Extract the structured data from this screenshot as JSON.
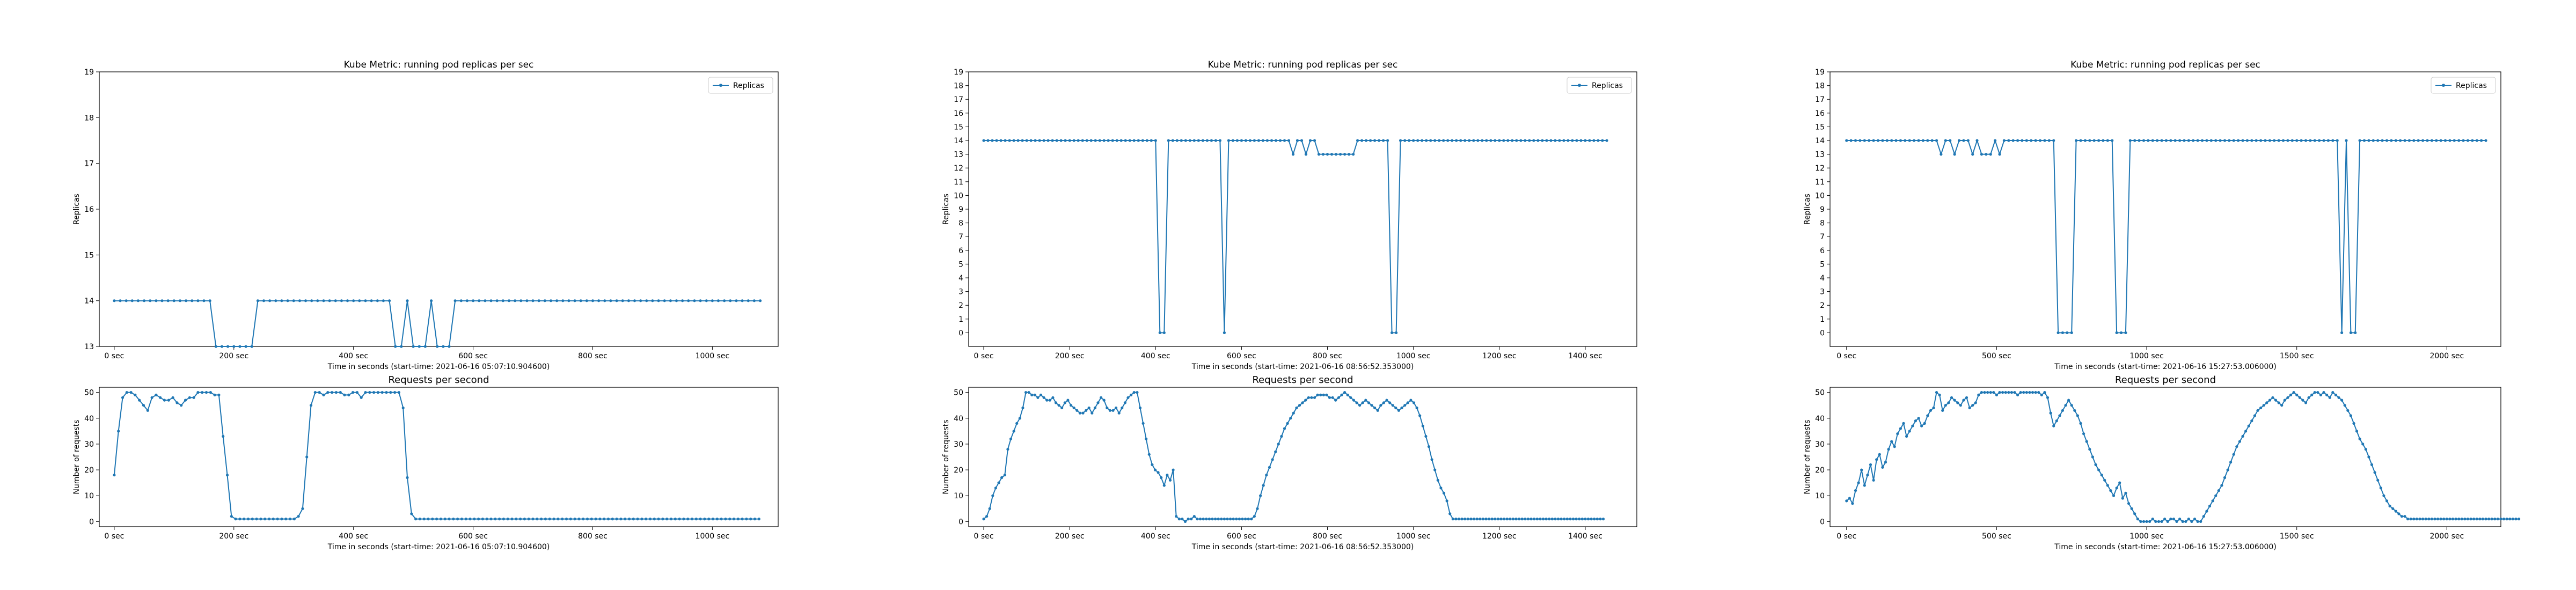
{
  "chart_data": [
    {
      "type": "line",
      "title": "Kube Metric: running pod replicas per sec",
      "xlabel": "Time in seconds (start-time: 2021-06-16 05:07:10.904600)",
      "ylabel": "Replicas",
      "xlim": [
        -25,
        1110
      ],
      "ylim": [
        13,
        19
      ],
      "xticks": [
        0,
        200,
        400,
        600,
        800,
        1000
      ],
      "xtick_labels": [
        "0 sec",
        "200 sec",
        "400 sec",
        "600 sec",
        "800 sec",
        "1000 sec"
      ],
      "yticks": [
        13,
        14,
        15,
        16,
        17,
        18,
        19
      ],
      "legend": "top-right",
      "series": [
        {
          "name": "Replicas",
          "color": "#1f77b4",
          "segments": [
            {
              "from": 0,
              "to": 160,
              "step": 10,
              "value": 14
            },
            {
              "from": 170,
              "to": 230,
              "step": 10,
              "value": 13
            },
            {
              "from": 240,
              "to": 460,
              "step": 10,
              "value": 14
            },
            {
              "from": 470,
              "to": 480,
              "step": 10,
              "value": 13
            },
            {
              "from": 490,
              "to": 490,
              "step": 10,
              "value": 14
            },
            {
              "from": 500,
              "to": 520,
              "step": 10,
              "value": 13
            },
            {
              "from": 530,
              "to": 530,
              "step": 10,
              "value": 14
            },
            {
              "from": 540,
              "to": 560,
              "step": 10,
              "value": 13
            },
            {
              "from": 570,
              "to": 1080,
              "step": 10,
              "value": 14
            }
          ]
        }
      ]
    },
    {
      "type": "line",
      "title": "Requests per second",
      "xlabel": "Time in seconds (start-time: 2021-06-16 05:07:10.904600)",
      "ylabel": "Number of requests",
      "xlim": [
        -25,
        1110
      ],
      "ylim": [
        -2,
        52
      ],
      "xticks": [
        0,
        200,
        400,
        600,
        800,
        1000
      ],
      "xtick_labels": [
        "0 sec",
        "200 sec",
        "400 sec",
        "600 sec",
        "800 sec",
        "1000 sec"
      ],
      "yticks": [
        0,
        10,
        20,
        30,
        40,
        50
      ],
      "series": [
        {
          "color": "#1f77b4",
          "step": 7,
          "values": [
            18,
            35,
            48,
            50,
            50,
            49,
            47,
            45,
            43,
            48,
            49,
            48,
            47,
            47,
            48,
            46,
            45,
            47,
            48,
            48,
            50,
            50,
            50,
            50,
            49,
            49,
            33,
            18,
            2,
            1,
            1,
            1,
            1,
            1,
            1,
            1,
            1,
            1,
            1,
            1,
            1,
            1,
            1,
            1,
            2,
            5,
            25,
            45,
            50,
            50,
            49,
            50,
            50,
            50,
            50,
            49,
            49,
            50,
            50,
            48,
            50,
            50,
            50,
            50,
            50,
            50,
            50,
            50,
            50,
            44,
            17,
            3,
            1,
            1,
            1,
            1,
            1,
            1,
            1,
            1,
            1,
            1,
            1,
            1,
            1,
            1,
            1,
            1,
            1,
            1,
            1,
            1,
            1,
            1,
            1,
            1,
            1,
            1,
            1,
            1,
            1,
            1,
            1,
            1,
            1,
            1,
            1,
            1,
            1,
            1,
            1,
            1,
            1,
            1,
            1,
            1,
            1,
            1,
            1,
            1,
            1,
            1,
            1,
            1,
            1,
            1,
            1,
            1,
            1,
            1,
            1,
            1,
            1,
            1,
            1,
            1,
            1,
            1,
            1,
            1,
            1,
            1,
            1,
            1,
            1,
            1,
            1,
            1,
            1,
            1,
            1,
            1,
            1,
            1,
            1
          ]
        }
      ]
    },
    {
      "type": "line",
      "title": "Kube Metric: running pod replicas per sec",
      "xlabel": "Time in seconds (start-time: 2021-06-16 08:56:52.353000)",
      "ylabel": "Replicas",
      "xlim": [
        -35,
        1520
      ],
      "ylim": [
        -1,
        19
      ],
      "xticks": [
        0,
        200,
        400,
        600,
        800,
        1000,
        1200,
        1400
      ],
      "xtick_labels": [
        "0 sec",
        "200 sec",
        "400 sec",
        "600 sec",
        "800 sec",
        "1000 sec",
        "1200 sec",
        "1400 sec"
      ],
      "yticks": [
        0,
        1,
        2,
        3,
        4,
        5,
        6,
        7,
        8,
        9,
        10,
        11,
        12,
        13,
        14,
        15,
        16,
        17,
        18,
        19
      ],
      "legend": "top-right",
      "series": [
        {
          "name": "Replicas",
          "color": "#1f77b4",
          "segments": [
            {
              "from": 0,
              "to": 400,
              "step": 10,
              "value": 14
            },
            {
              "from": 410,
              "to": 420,
              "step": 10,
              "value": 0
            },
            {
              "from": 430,
              "to": 550,
              "step": 10,
              "value": 14
            },
            {
              "from": 560,
              "to": 560,
              "step": 10,
              "value": 0
            },
            {
              "from": 570,
              "to": 710,
              "step": 10,
              "value": 14
            },
            {
              "from": 720,
              "to": 720,
              "step": 10,
              "value": 13
            },
            {
              "from": 730,
              "to": 740,
              "step": 10,
              "value": 14
            },
            {
              "from": 750,
              "to": 750,
              "step": 10,
              "value": 13
            },
            {
              "from": 760,
              "to": 770,
              "step": 10,
              "value": 14
            },
            {
              "from": 780,
              "to": 860,
              "step": 10,
              "value": 13
            },
            {
              "from": 870,
              "to": 940,
              "step": 10,
              "value": 14
            },
            {
              "from": 950,
              "to": 960,
              "step": 10,
              "value": 0
            },
            {
              "from": 970,
              "to": 1450,
              "step": 10,
              "value": 14
            }
          ]
        }
      ]
    },
    {
      "type": "line",
      "title": "Requests per second",
      "xlabel": "Time in seconds (start-time: 2021-06-16 08:56:52.353000)",
      "ylabel": "Number of requests",
      "xlim": [
        -35,
        1520
      ],
      "ylim": [
        -2,
        52
      ],
      "xticks": [
        0,
        200,
        400,
        600,
        800,
        1000,
        1200,
        1400
      ],
      "xtick_labels": [
        "0 sec",
        "200 sec",
        "400 sec",
        "600 sec",
        "800 sec",
        "1000 sec",
        "1200 sec",
        "1400 sec"
      ],
      "yticks": [
        0,
        10,
        20,
        30,
        40,
        50
      ],
      "series": [
        {
          "color": "#1f77b4",
          "step": 7,
          "values": [
            1,
            2,
            5,
            10,
            13,
            15,
            17,
            18,
            28,
            32,
            35,
            38,
            40,
            44,
            50,
            50,
            49,
            49,
            48,
            49,
            48,
            47,
            47,
            48,
            46,
            45,
            44,
            46,
            47,
            45,
            44,
            43,
            42,
            42,
            43,
            44,
            42,
            44,
            46,
            48,
            47,
            44,
            43,
            43,
            44,
            42,
            44,
            46,
            48,
            49,
            50,
            50,
            44,
            38,
            32,
            26,
            22,
            20,
            19,
            17,
            14,
            18,
            16,
            20,
            2,
            1,
            1,
            0,
            1,
            1,
            2,
            1,
            1,
            1,
            1,
            1,
            1,
            1,
            1,
            1,
            1,
            1,
            1,
            1,
            1,
            1,
            1,
            1,
            1,
            1,
            2,
            5,
            10,
            14,
            18,
            21,
            24,
            27,
            30,
            33,
            36,
            38,
            40,
            42,
            44,
            45,
            46,
            47,
            48,
            48,
            48,
            49,
            49,
            49,
            49,
            48,
            48,
            47,
            48,
            49,
            50,
            49,
            48,
            47,
            46,
            45,
            46,
            47,
            46,
            45,
            44,
            43,
            45,
            46,
            47,
            46,
            45,
            44,
            43,
            44,
            45,
            46,
            47,
            46,
            44,
            41,
            37,
            33,
            29,
            24,
            20,
            16,
            13,
            11,
            8,
            3,
            1,
            1,
            1,
            1,
            1,
            1,
            1,
            1,
            1,
            1,
            1,
            1,
            1,
            1,
            1,
            1,
            1,
            1,
            1,
            1,
            1,
            1,
            1,
            1,
            1,
            1,
            1,
            1,
            1,
            1,
            1,
            1,
            1,
            1,
            1,
            1,
            1,
            1,
            1,
            1,
            1,
            1,
            1,
            1,
            1,
            1,
            1,
            1,
            1,
            1,
            1
          ]
        }
      ]
    },
    {
      "type": "line",
      "title": "Kube Metric: running pod replicas per sec",
      "xlabel": "Time in seconds (start-time: 2021-06-16 15:27:53.006000)",
      "ylabel": "Replicas",
      "xlim": [
        -55,
        2180
      ],
      "ylim": [
        -1,
        19
      ],
      "xticks": [
        0,
        500,
        1000,
        1500,
        2000
      ],
      "xtick_labels": [
        "0 sec",
        "500 sec",
        "1000 sec",
        "1500 sec",
        "2000 sec"
      ],
      "yticks": [
        0,
        1,
        2,
        3,
        4,
        5,
        6,
        7,
        8,
        9,
        10,
        11,
        12,
        13,
        14,
        15,
        16,
        17,
        18,
        19
      ],
      "legend": "top-right",
      "series": [
        {
          "name": "Replicas",
          "color": "#1f77b4",
          "segments": [
            {
              "from": 0,
              "to": 300,
              "step": 15,
              "value": 14
            },
            {
              "from": 315,
              "to": 315,
              "step": 15,
              "value": 13
            },
            {
              "from": 330,
              "to": 345,
              "step": 15,
              "value": 14
            },
            {
              "from": 360,
              "to": 360,
              "step": 15,
              "value": 13
            },
            {
              "from": 375,
              "to": 405,
              "step": 15,
              "value": 14
            },
            {
              "from": 420,
              "to": 420,
              "step": 15,
              "value": 13
            },
            {
              "from": 435,
              "to": 435,
              "step": 15,
              "value": 14
            },
            {
              "from": 450,
              "to": 480,
              "step": 15,
              "value": 13
            },
            {
              "from": 495,
              "to": 495,
              "step": 15,
              "value": 14
            },
            {
              "from": 510,
              "to": 510,
              "step": 15,
              "value": 13
            },
            {
              "from": 525,
              "to": 690,
              "step": 15,
              "value": 14
            },
            {
              "from": 705,
              "to": 750,
              "step": 15,
              "value": 0
            },
            {
              "from": 765,
              "to": 885,
              "step": 15,
              "value": 14
            },
            {
              "from": 900,
              "to": 930,
              "step": 15,
              "value": 0
            },
            {
              "from": 945,
              "to": 1635,
              "step": 15,
              "value": 14
            },
            {
              "from": 1650,
              "to": 1650,
              "step": 15,
              "value": 0
            },
            {
              "from": 1665,
              "to": 1665,
              "step": 15,
              "value": 14
            },
            {
              "from": 1680,
              "to": 1695,
              "step": 15,
              "value": 0
            },
            {
              "from": 1710,
              "to": 2130,
              "step": 15,
              "value": 14
            }
          ]
        }
      ]
    },
    {
      "type": "line",
      "title": "Requests per second",
      "xlabel": "Time in seconds (start-time: 2021-06-16 15:27:53.006000)",
      "ylabel": "Number of requests",
      "xlim": [
        -55,
        2180
      ],
      "ylim": [
        -2,
        52
      ],
      "xticks": [
        0,
        500,
        1000,
        1500,
        2000
      ],
      "xtick_labels": [
        "0 sec",
        "500 sec",
        "1000 sec",
        "1500 sec",
        "2000 sec"
      ],
      "yticks": [
        0,
        10,
        20,
        30,
        40,
        50
      ],
      "series": [
        {
          "color": "#1f77b4",
          "step": 10,
          "values": [
            8,
            9,
            7,
            12,
            15,
            20,
            14,
            18,
            22,
            16,
            24,
            26,
            21,
            23,
            28,
            31,
            29,
            34,
            36,
            38,
            33,
            35,
            37,
            39,
            40,
            37,
            38,
            41,
            43,
            44,
            50,
            49,
            43,
            45,
            46,
            48,
            47,
            46,
            45,
            47,
            48,
            44,
            45,
            46,
            49,
            50,
            50,
            50,
            50,
            50,
            49,
            50,
            50,
            50,
            50,
            50,
            50,
            49,
            50,
            50,
            50,
            50,
            50,
            50,
            50,
            49,
            50,
            48,
            42,
            37,
            39,
            41,
            43,
            45,
            47,
            45,
            43,
            41,
            38,
            34,
            31,
            28,
            25,
            22,
            20,
            18,
            16,
            14,
            12,
            10,
            13,
            15,
            9,
            11,
            7,
            5,
            3,
            1,
            0,
            0,
            0,
            0,
            1,
            0,
            0,
            0,
            1,
            0,
            1,
            1,
            0,
            1,
            0,
            0,
            1,
            0,
            1,
            0,
            0,
            2,
            4,
            6,
            8,
            10,
            12,
            14,
            17,
            20,
            23,
            26,
            29,
            31,
            33,
            35,
            37,
            39,
            41,
            43,
            44,
            45,
            46,
            47,
            48,
            47,
            46,
            45,
            47,
            48,
            49,
            50,
            49,
            48,
            47,
            46,
            48,
            49,
            50,
            50,
            49,
            50,
            49,
            48,
            50,
            49,
            48,
            47,
            45,
            43,
            41,
            38,
            35,
            32,
            30,
            28,
            25,
            22,
            19,
            16,
            13,
            10,
            8,
            6,
            5,
            4,
            3,
            2,
            2,
            1,
            1,
            1,
            1,
            1,
            1,
            1,
            1,
            1,
            1,
            1,
            1,
            1,
            1,
            1,
            1,
            1,
            1,
            1,
            1,
            1,
            1,
            1,
            1,
            1,
            1,
            1,
            1,
            1,
            1,
            1,
            1,
            1,
            1,
            1,
            1,
            1,
            1
          ]
        }
      ]
    }
  ]
}
